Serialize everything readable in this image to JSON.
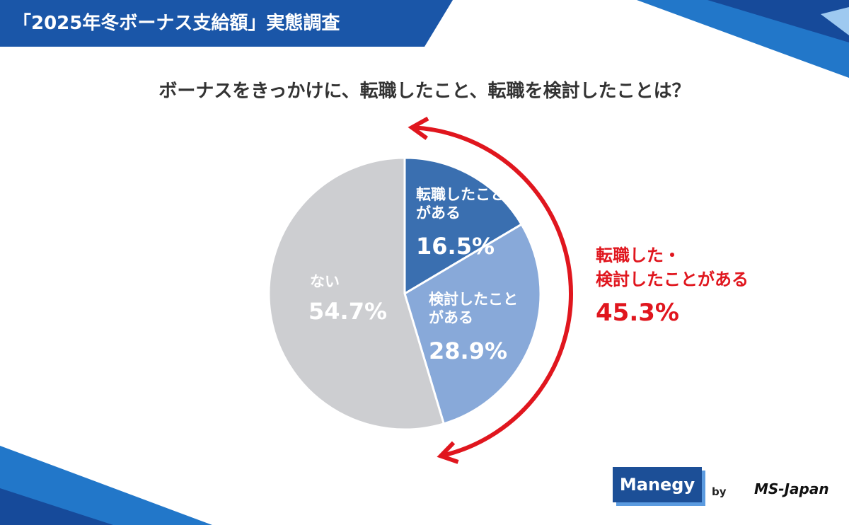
{
  "header": {
    "title": "「2025年冬ボーナス支給額」実態調査"
  },
  "chart_data": {
    "type": "pie",
    "title": "ボーナスをきっかけに、転職したこと、転職を検討したことは？",
    "categories": [
      "転職したこと\nがある",
      "検討したこと\nがある",
      "ない"
    ],
    "values": [
      16.5,
      28.9,
      54.7
    ],
    "value_labels": [
      "16.5%",
      "28.9%",
      "54.7%"
    ],
    "colors": [
      "#3a6fb0",
      "#88a9d9",
      "#cdced1"
    ],
    "annotation": {
      "text": "転職した・\n検討したことがある",
      "value": 45.3,
      "label": "45.3%",
      "color": "#e0161e"
    }
  },
  "logos": {
    "brand": "Manegy",
    "by": "by",
    "company": "MS-Japan"
  }
}
